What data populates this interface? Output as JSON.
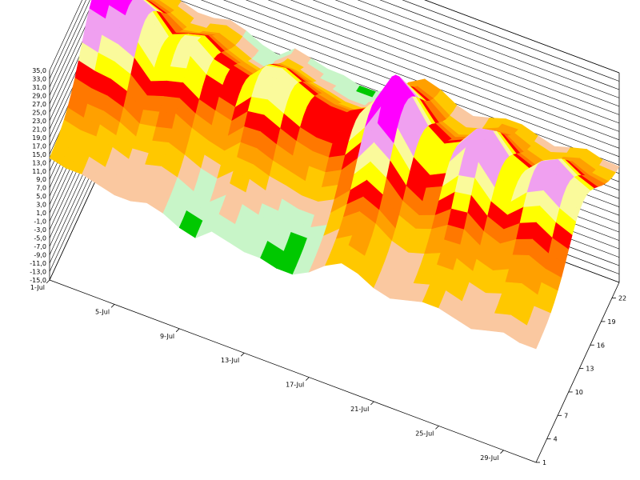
{
  "chart_data": {
    "type": "surface-3d",
    "title": "",
    "xlabel": "",
    "ylabel": "",
    "zlabel": "",
    "grid": true,
    "legend": "none",
    "x_axis": {
      "ticks": [
        "1-Jul",
        "5-Jul",
        "9-Jul",
        "13-Jul",
        "17-Jul",
        "21-Jul",
        "25-Jul",
        "29-Jul"
      ],
      "range": [
        "1-Jul",
        "31-Jul"
      ]
    },
    "y_axis": {
      "ticks": [
        "1",
        "4",
        "7",
        "10",
        "13",
        "16",
        "19",
        "22"
      ],
      "range": [
        1,
        24
      ]
    },
    "z_axis": {
      "ticks": [
        "35,0",
        "33,0",
        "31,0",
        "29,0",
        "27,0",
        "25,0",
        "23,0",
        "21,0",
        "19,0",
        "17,0",
        "15,0",
        "13,0",
        "11,0",
        "9,0",
        "7,0",
        "5,0",
        "3,0",
        "1,0",
        "-1,0",
        "-3,0",
        "-5,0",
        "-7,0",
        "-9,0",
        "-11,0",
        "-13,0",
        "-15,0"
      ],
      "range": [
        -15,
        35
      ]
    },
    "daily_peak": [
      31,
      30,
      29,
      27,
      22,
      24,
      25,
      22,
      21,
      20,
      24,
      25,
      23,
      21,
      20,
      20,
      22,
      27,
      34,
      30,
      24,
      21,
      23,
      28,
      29,
      24,
      22,
      26,
      28,
      25,
      23
    ],
    "daily_min": [
      14,
      13,
      13,
      12,
      11,
      11,
      12,
      11,
      9,
      8,
      11,
      10,
      9,
      9,
      8,
      8,
      10,
      13,
      15,
      14,
      12,
      11,
      12,
      13,
      13,
      12,
      11,
      12,
      13,
      12,
      12
    ],
    "peak_hour": 14,
    "color_bands": [
      {
        "min": 0,
        "color": "#00c800"
      },
      {
        "min": 9,
        "color": "#c8f5c8"
      },
      {
        "min": 11,
        "color": "#fac8a0"
      },
      {
        "min": 13,
        "color": "#ffc800"
      },
      {
        "min": 15,
        "color": "#ffa000"
      },
      {
        "min": 17,
        "color": "#ff7800"
      },
      {
        "min": 19,
        "color": "#ff0000"
      },
      {
        "min": 21,
        "color": "#ffff00"
      },
      {
        "min": 23,
        "color": "#fafa9b"
      },
      {
        "min": 25,
        "color": "#f0a0f0"
      },
      {
        "min": 29,
        "color": "#ff00ff"
      },
      {
        "min": 32,
        "color": "#800000"
      }
    ]
  }
}
